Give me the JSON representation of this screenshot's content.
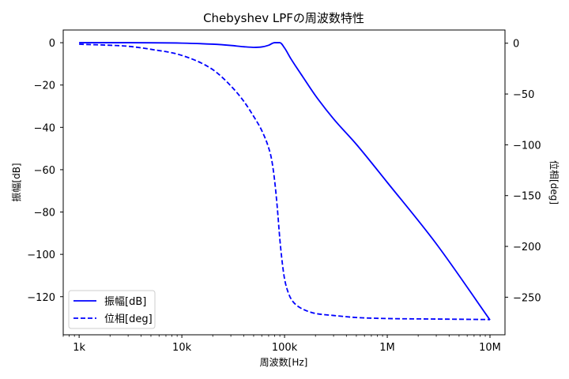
{
  "chart_data": {
    "type": "line",
    "title": "Chebyshev LPFの周波数特性",
    "xlabel": "周波数[Hz]",
    "ylabel": "振幅[dB]",
    "y2label": "位相[deg]",
    "xscale": "log",
    "xlim": [
      700,
      14000000
    ],
    "ylim": [
      -138,
      6
    ],
    "y2lim": [
      -287,
      13
    ],
    "x_ticks": [
      1000,
      10000,
      100000,
      1000000,
      10000000
    ],
    "x_tick_labels": [
      "1k",
      "10k",
      "100k",
      "1M",
      "10M"
    ],
    "y_ticks": [
      0,
      -20,
      -40,
      -60,
      -80,
      -100,
      -120
    ],
    "y_tick_labels": [
      "0",
      "−20",
      "−40",
      "−60",
      "−80",
      "−100",
      "−120"
    ],
    "y2_ticks": [
      0,
      -50,
      -100,
      -150,
      -200,
      -250
    ],
    "y2_tick_labels": [
      "0",
      "−50",
      "−100",
      "−150",
      "−200",
      "−250"
    ],
    "grid": false,
    "legend": "lower-left",
    "series": [
      {
        "name": "振幅[dB]",
        "axis": "left",
        "style": "solid",
        "color": "#0000ff",
        "x": [
          1000,
          3000,
          10000,
          20000,
          30000,
          40000,
          50000,
          60000,
          70000,
          80000,
          90000,
          100000,
          115000,
          130000,
          150000,
          200000,
          300000,
          500000,
          1000000,
          3000000,
          10000000
        ],
        "y": [
          0,
          0,
          -0.2,
          -0.7,
          -1.3,
          -1.9,
          -2.2,
          -2.0,
          -1.2,
          0,
          0,
          -2.5,
          -7.5,
          -11.5,
          -16,
          -25,
          -36,
          -48,
          -66,
          -95,
          -131
        ]
      },
      {
        "name": "位相[deg]",
        "axis": "right",
        "style": "dashed",
        "color": "#0000ff",
        "x": [
          1000,
          2000,
          3000,
          5000,
          10000,
          20000,
          30000,
          40000,
          50000,
          60000,
          70000,
          75000,
          80000,
          85000,
          90000,
          95000,
          100000,
          110000,
          120000,
          140000,
          170000,
          200000,
          300000,
          500000,
          1000000,
          3000000,
          10000000
        ],
        "y": [
          -1,
          -2,
          -3,
          -6,
          -12,
          -26,
          -42,
          -57,
          -72,
          -86,
          -103,
          -115,
          -135,
          -162,
          -193,
          -216,
          -232,
          -247,
          -254,
          -260,
          -264,
          -266,
          -268,
          -270,
          -271,
          -271.5,
          -272
        ]
      }
    ]
  }
}
